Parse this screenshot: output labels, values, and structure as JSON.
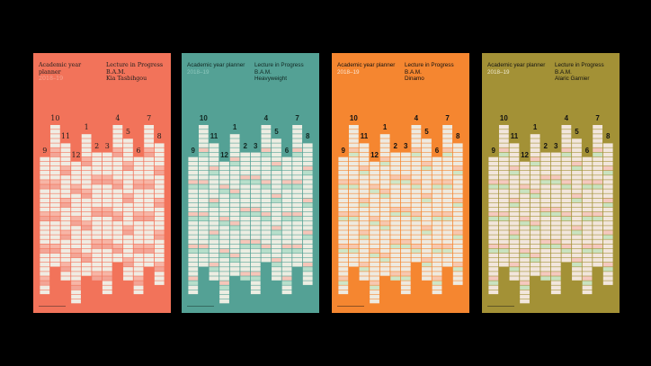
{
  "page": {
    "background": "#000000"
  },
  "posters": [
    {
      "id": "kia-tasbihgou",
      "background": "#f2735a",
      "text_color": "#1e1e1e",
      "year_color": "#f7a896",
      "cell_color": "#f0ece3",
      "line_a": "#f7b5a6",
      "line_b": "#f3a596",
      "font": "serif",
      "title": "Academic year planner",
      "year": "2018–19",
      "lecture": "Lecture in Progress",
      "org": "B.A.M.",
      "typeface": "Kia Tasbihgou"
    },
    {
      "id": "heavyweight",
      "background": "#54a195",
      "text_color": "#112722",
      "year_color": "#8fc8bf",
      "cell_color": "#ecede2",
      "line_a": "#f6c6b9",
      "line_b": "#b7dfcb",
      "font": "sans",
      "title": "Academic year planner",
      "year": "2018–19",
      "lecture": "Lecture in Progress",
      "org": "B.A.M.",
      "typeface": "Heavyweight"
    },
    {
      "id": "dinamo",
      "background": "#f58630",
      "text_color": "#111111",
      "year_color": "#fbe6d2",
      "cell_color": "#eeeae0",
      "line_a": "#f7c8b0",
      "line_b": "#cfe6c7",
      "font": "sans",
      "title": "Academic year planner",
      "year": "2018–19",
      "lecture": "Lecture in Progress",
      "org": "B.A.M.",
      "typeface": "Dinamo"
    },
    {
      "id": "alaric-garnier",
      "background": "#a39136",
      "text_color": "#111111",
      "year_color": "#f0ead0",
      "cell_color": "#f2e6dc",
      "line_a": "#f5c9bf",
      "line_b": "#c9e3c0",
      "font": "sans",
      "title": "Academic year planner",
      "year": "2018–19",
      "lecture": "Lecture in Progress",
      "org": "B.A.M.",
      "typeface": "Alaric Garnier"
    }
  ],
  "months": [
    {
      "label": "9",
      "days": 30
    },
    {
      "label": "10",
      "days": 31
    },
    {
      "label": "11",
      "days": 30
    },
    {
      "label": "12",
      "days": 31
    },
    {
      "label": "1",
      "days": 31
    },
    {
      "label": "2",
      "days": 28
    },
    {
      "label": "3",
      "days": 31
    },
    {
      "label": "4",
      "days": 30
    },
    {
      "label": "5",
      "days": 31
    },
    {
      "label": "6",
      "days": 30
    },
    {
      "label": "7",
      "days": 31
    },
    {
      "label": "8",
      "days": 31
    }
  ]
}
